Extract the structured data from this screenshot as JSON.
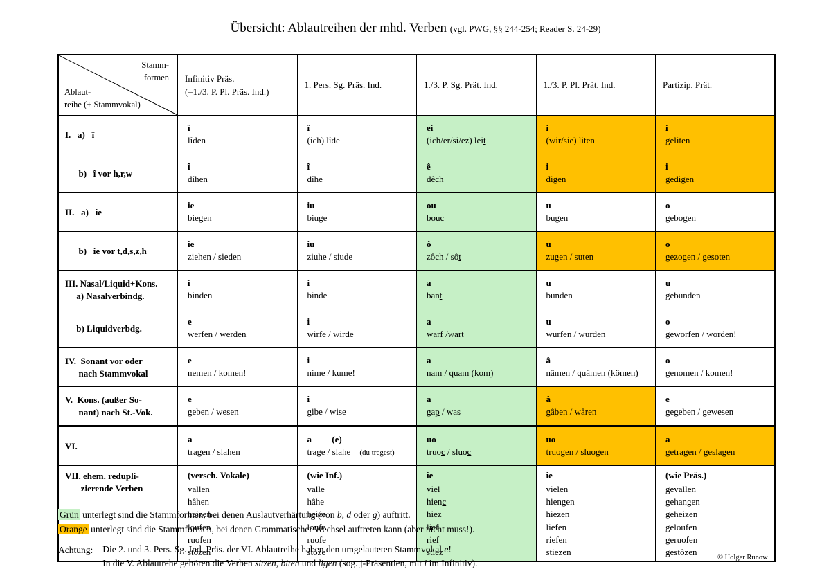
{
  "title": {
    "main": "Übersicht: Ablautreihen der mhd. Verben ",
    "suffix": "(vgl. PWG, §§ 244-254; Reader S. 24-29)"
  },
  "colors": {
    "green_highlight": "#c6f0c6",
    "orange_highlight": "#ffc000"
  },
  "table": {
    "corner": {
      "top_label": "Stamm-\nformen",
      "bottom_label": "Ablaut-\nreihe (+ Stammvokal)"
    },
    "columns": [
      "Infinitiv Präs.\n(=1./3. P. Pl. Präs. Ind.)",
      "1. Pers. Sg. Präs. Ind.",
      "1./3. P. Sg. Prät. Ind.",
      "1./3. P. Pl. Prät. Ind.",
      "Partizip. Prät."
    ],
    "rows": [
      {
        "label": "I.   a)   î",
        "cells": [
          {
            "vowel": "î",
            "words": "lîden",
            "bg": "none"
          },
          {
            "vowel": "î",
            "words": "(ich) lîde",
            "bg": "none"
          },
          {
            "vowel": "ei",
            "words": "(ich/er/si/ez) lei<u>t</u>",
            "bg": "green"
          },
          {
            "vowel": "i",
            "words": "(wir/sie) liten",
            "bg": "orange"
          },
          {
            "vowel": "i",
            "words": "geliten",
            "bg": "orange"
          }
        ]
      },
      {
        "label": "      b)   î vor h,r,w",
        "cells": [
          {
            "vowel": "î",
            "words": "dîhen",
            "bg": "none"
          },
          {
            "vowel": "î",
            "words": "dîhe",
            "bg": "none"
          },
          {
            "vowel": "ê",
            "words": "dêch",
            "bg": "green"
          },
          {
            "vowel": "i",
            "words": "digen",
            "bg": "orange"
          },
          {
            "vowel": "i",
            "words": "gedigen",
            "bg": "orange"
          }
        ]
      },
      {
        "label": "II.   a)   ie",
        "cells": [
          {
            "vowel": "ie",
            "words": "biegen",
            "bg": "none"
          },
          {
            "vowel": "iu",
            "words": "biuge",
            "bg": "none"
          },
          {
            "vowel": "ou",
            "words": "bou<u>c</u>",
            "bg": "green"
          },
          {
            "vowel": "u",
            "words": "bugen",
            "bg": "none"
          },
          {
            "vowel": "o",
            "words": "gebogen",
            "bg": "none"
          }
        ]
      },
      {
        "label": "      b)   ie vor t,d,s,z,h",
        "cells": [
          {
            "vowel": "ie",
            "words": "ziehen / sieden",
            "bg": "none"
          },
          {
            "vowel": "iu",
            "words": "ziuhe / siude",
            "bg": "none"
          },
          {
            "vowel": "ô",
            "words": "zôch / sô<u>t</u>",
            "bg": "green"
          },
          {
            "vowel": "u",
            "words": "zugen / suten",
            "bg": "orange"
          },
          {
            "vowel": "o",
            "words": "gezogen / gesoten",
            "bg": "orange"
          }
        ]
      },
      {
        "label": "III. Nasal/Liquid+Kons.\n     a) Nasalverbindg.",
        "cells": [
          {
            "vowel": "i",
            "words": "binden",
            "bg": "none"
          },
          {
            "vowel": "i",
            "words": "binde",
            "bg": "none"
          },
          {
            "vowel": "a",
            "words": "ban<u>t</u>",
            "bg": "green"
          },
          {
            "vowel": "u",
            "words": "bunden",
            "bg": "none"
          },
          {
            "vowel": "u",
            "words": "gebunden",
            "bg": "none"
          }
        ]
      },
      {
        "label": "     b) Liquidverbdg.",
        "cells": [
          {
            "vowel": "e",
            "words": "werfen / werden",
            "bg": "none"
          },
          {
            "vowel": "i",
            "words": "wirfe / wirde",
            "bg": "none"
          },
          {
            "vowel": "a",
            "words": "warf /war<u>t</u>",
            "bg": "green"
          },
          {
            "vowel": "u",
            "words": "wurfen / wurden",
            "bg": "none"
          },
          {
            "vowel": "o",
            "words": "geworfen / worden!",
            "bg": "none"
          }
        ]
      },
      {
        "label": "IV.  Sonant vor oder\n      nach Stammvokal",
        "cells": [
          {
            "vowel": "e",
            "words": "nemen / komen!",
            "bg": "none"
          },
          {
            "vowel": "i",
            "words": "nime / kume!",
            "bg": "none"
          },
          {
            "vowel": "a",
            "words": "nam / quam (kom)",
            "bg": "green"
          },
          {
            "vowel": "â",
            "words": "nâmen / quâmen (kömen)",
            "bg": "none"
          },
          {
            "vowel": "o",
            "words": "genomen / komen!",
            "bg": "none"
          }
        ]
      },
      {
        "label": "V.  Kons. (außer So-\n      nant) nach St.-Vok.",
        "cells": [
          {
            "vowel": "e",
            "words": "geben / wesen",
            "bg": "none"
          },
          {
            "vowel": "i",
            "words": "gibe / wise",
            "bg": "none"
          },
          {
            "vowel": "a",
            "words": "ga<u>p</u> / was",
            "bg": "green"
          },
          {
            "vowel": "â",
            "words": "gâben / wâren",
            "bg": "orange"
          },
          {
            "vowel": "e",
            "words": "gegeben / gewesen",
            "bg": "none"
          }
        ]
      },
      {
        "label": "VI.",
        "divider_above": true,
        "cells": [
          {
            "vowel": "a",
            "words": "tragen / slahen",
            "bg": "none"
          },
          {
            "vowel": "a         (e)",
            "words": "trage / slahe    <span class=\"small\">(du tregest)</span>",
            "bg": "none"
          },
          {
            "vowel": "uo",
            "words": "truo<u>c</u> / sluo<u>c</u>",
            "bg": "green"
          },
          {
            "vowel": "uo",
            "words": "truogen / sluogen",
            "bg": "orange"
          },
          {
            "vowel": "a",
            "words": "getragen / geslagen",
            "bg": "orange"
          }
        ]
      },
      {
        "label": "VII. ehem. redupli-\n       zierende Verben",
        "tall": true,
        "cells": [
          {
            "vowel": "(versch. Vokale)",
            "words": "vallen\nhâhen\nheizen\nloufen\nruofen\nstôzen",
            "bg": "none"
          },
          {
            "vowel": "(wie Inf.)",
            "words": "valle\nhâhe\nheize\nloufe\nruofe\nstôze",
            "bg": "none"
          },
          {
            "vowel": "ie",
            "words": "viel\nhien<u>c</u>\nhiez\nlief\nrief\nstiez",
            "bg": "green"
          },
          {
            "vowel": "ie",
            "words": "vielen\nhiengen\nhiezen\nliefen\nriefen\nstiezen",
            "bg": "none"
          },
          {
            "vowel": "(wie Präs.)",
            "words": "gevallen\ngehangen\ngeheizen\ngeloufen\ngeruofen\ngestôzen",
            "bg": "none"
          }
        ]
      }
    ]
  },
  "legend": {
    "green_note": {
      "highlight": "Grün",
      "text_html": " unterlegt sind die Stammformen, bei denen Auslautverhärtung (von <i>b</i>, <i>d</i> oder <i>g</i>) auftritt."
    },
    "orange_note": {
      "highlight": "Orange",
      "text_html": " unterlegt sind die Stammformen, bei denen Grammatischer Wechsel auftreten kann (aber nicht muss!)."
    }
  },
  "achtung": {
    "label": "Achtung:",
    "line1_html": "Die 2. und 3. Pers. Sg. Ind. Präs. der VI. Ablautreihe haben den umgelauteten Stammvokal <i>e</i>!",
    "line2_html": "In die V. Ablautrehe gehören die Verben <i>sitzen</i>, <i>biten</i> und <i>ligen</i> (sog. j-Präsentien, mit <i>i</i> im Infinitiv)."
  },
  "copyright": "© Holger Runow"
}
